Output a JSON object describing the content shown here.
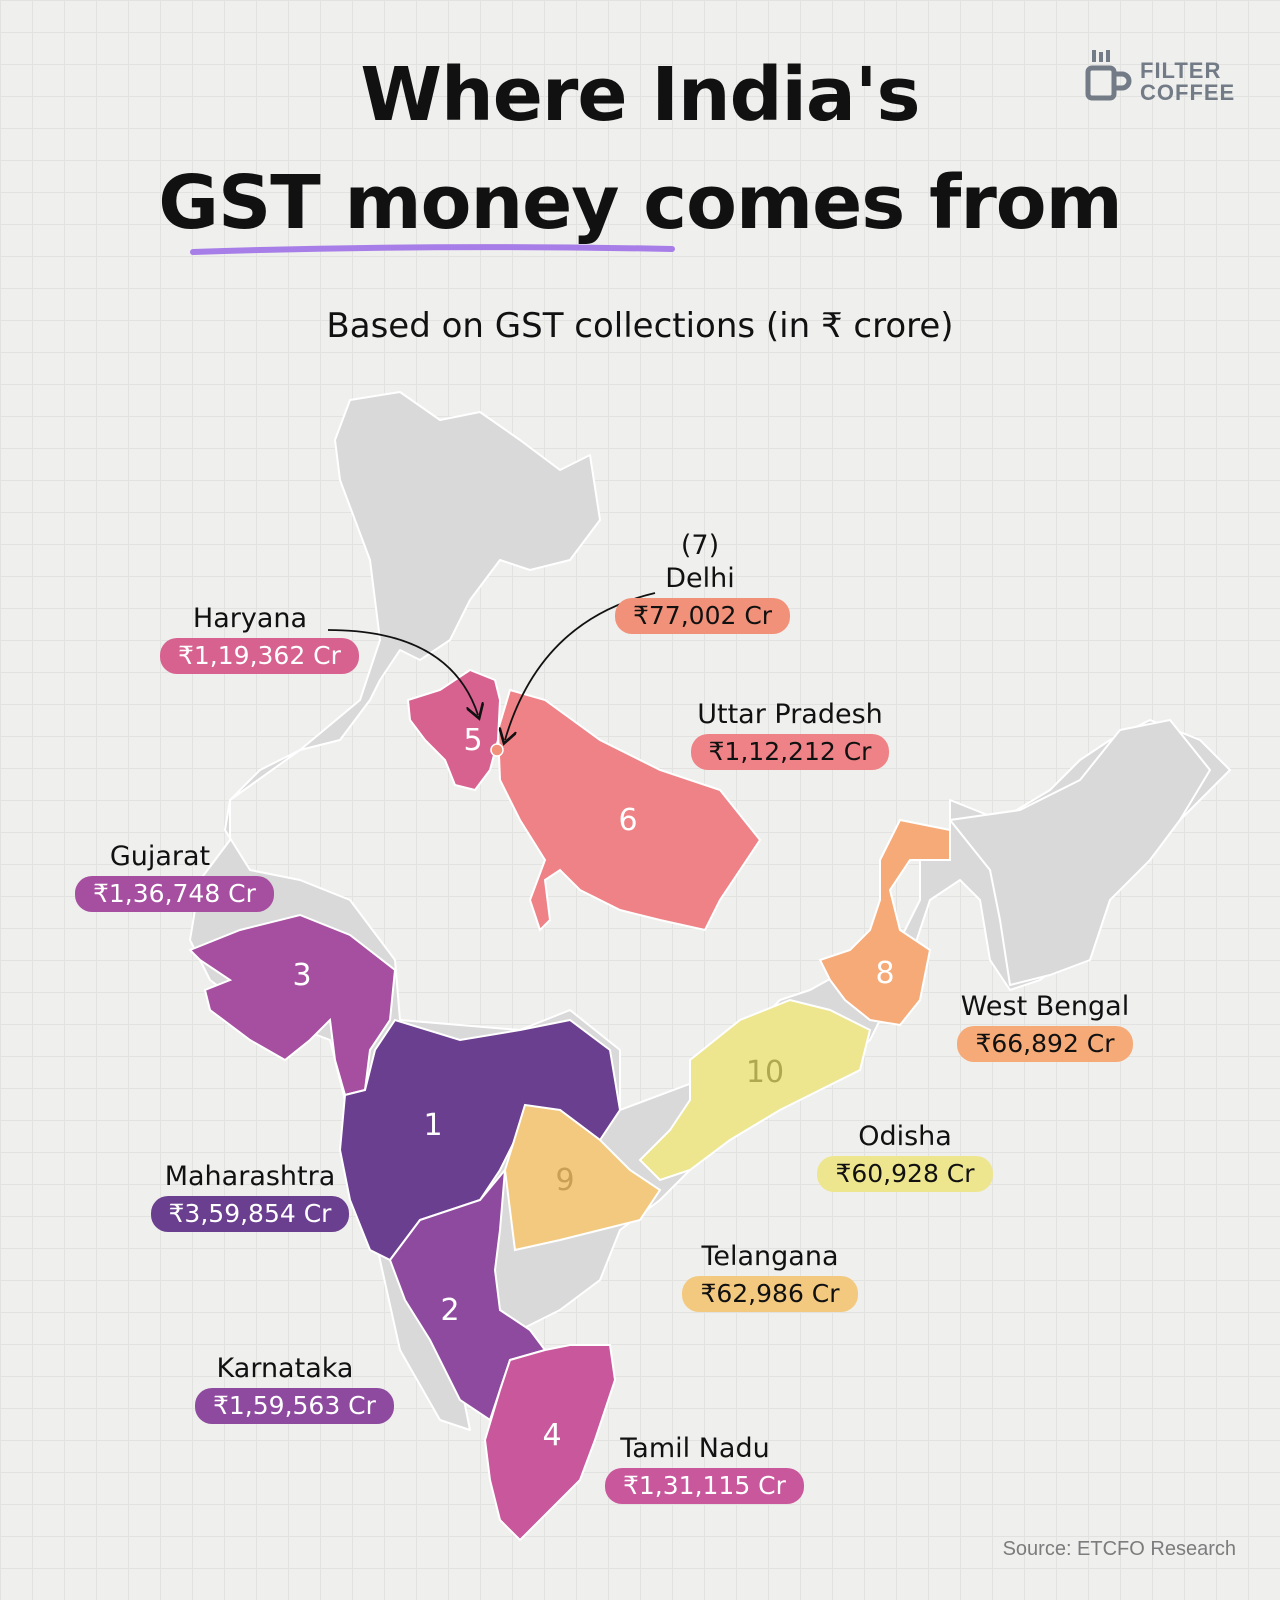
{
  "title_line1": "Where India's",
  "title_line2": "GST money comes from",
  "subtitle": "Based on GST collections (in ₹ crore)",
  "brand": {
    "line1": "FILTER",
    "line2": "COFFEE",
    "color": "#727b86"
  },
  "source": "Source: ETCFO Research",
  "accent": "#a77ee8",
  "states": [
    {
      "key": "maharashtra",
      "name": "Maharashtra",
      "rank": "1",
      "value": "₹3,59,854 Cr",
      "color": "#6b3f8f",
      "text_color": "#ffffff"
    },
    {
      "key": "karnataka",
      "name": "Karnataka",
      "rank": "2",
      "value": "₹1,59,563 Cr",
      "color": "#8e4a9e",
      "text_color": "#ffffff"
    },
    {
      "key": "gujarat",
      "name": "Gujarat",
      "rank": "3",
      "value": "₹1,36,748 Cr",
      "color": "#a64ea0",
      "text_color": "#ffffff"
    },
    {
      "key": "tamil_nadu",
      "name": "Tamil Nadu",
      "rank": "4",
      "value": "₹1,31,115 Cr",
      "color": "#c9579c",
      "text_color": "#ffffff"
    },
    {
      "key": "haryana",
      "name": "Haryana",
      "rank": "5",
      "value": "₹1,19,362 Cr",
      "color": "#d8628f",
      "text_color": "#ffffff"
    },
    {
      "key": "uttar_pradesh",
      "name": "Uttar Pradesh",
      "rank": "6",
      "value": "₹1,12,212 Cr",
      "color": "#ee8286",
      "text_color": "#111111"
    },
    {
      "key": "delhi",
      "name": "Delhi",
      "rank": "(7)",
      "value": "₹77,002 Cr",
      "color": "#f2917a",
      "text_color": "#111111"
    },
    {
      "key": "west_bengal",
      "name": "West Bengal",
      "rank": "8",
      "value": "₹66,892 Cr",
      "color": "#f5aa78",
      "text_color": "#111111"
    },
    {
      "key": "telangana",
      "name": "Telangana",
      "rank": "9",
      "value": "₹62,986 Cr",
      "color": "#f3c97f",
      "text_color": "#111111"
    },
    {
      "key": "odisha",
      "name": "Odisha",
      "rank": "10",
      "value": "₹60,928 Cr",
      "color": "#ede68f",
      "text_color": "#111111"
    }
  ],
  "map_base_color": "#d9d9d9"
}
